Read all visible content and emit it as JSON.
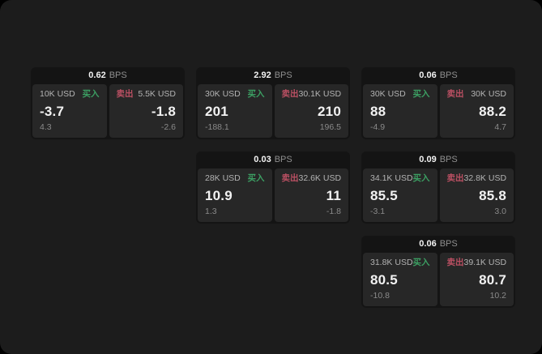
{
  "labels": {
    "bps_unit": "BPS",
    "buy": "买入",
    "sell": "卖出"
  },
  "colors": {
    "page_bg": "#1c1c1c",
    "card_bg": "#141414",
    "panel_bg": "#272727",
    "buy_green": "#3c9f63",
    "sell_red": "#bb5063",
    "value_white": "#f2f2f2",
    "label_gray": "#b3b3b3",
    "sub_gray": "#8a8a8a",
    "unit_gray": "#8f8f8f"
  },
  "cards": [
    {
      "bps": "0.62",
      "buy": {
        "amount": "10K USD",
        "value": "-3.7",
        "sub": "4.3"
      },
      "sell": {
        "amount": "5.5K USD",
        "value": "-1.8",
        "sub": "-2.6"
      }
    },
    {
      "bps": "2.92",
      "buy": {
        "amount": "30K USD",
        "value": "201",
        "sub": "-188.1"
      },
      "sell": {
        "amount": "30.1K USD",
        "value": "210",
        "sub": "196.5"
      }
    },
    {
      "bps": "0.06",
      "buy": {
        "amount": "30K USD",
        "value": "88",
        "sub": "-4.9"
      },
      "sell": {
        "amount": "30K USD",
        "value": "88.2",
        "sub": "4.7"
      }
    },
    {
      "bps": "0.03",
      "buy": {
        "amount": "28K USD",
        "value": "10.9",
        "sub": "1.3"
      },
      "sell": {
        "amount": "32.6K USD",
        "value": "11",
        "sub": "-1.8"
      }
    },
    {
      "bps": "0.09",
      "buy": {
        "amount": "34.1K USD",
        "value": "85.5",
        "sub": "-3.1"
      },
      "sell": {
        "amount": "32.8K USD",
        "value": "85.8",
        "sub": "3.0"
      }
    },
    {
      "bps": "0.06",
      "buy": {
        "amount": "31.8K USD",
        "value": "80.5",
        "sub": "-10.8"
      },
      "sell": {
        "amount": "39.1K USD",
        "value": "80.7",
        "sub": "10.2"
      }
    }
  ]
}
